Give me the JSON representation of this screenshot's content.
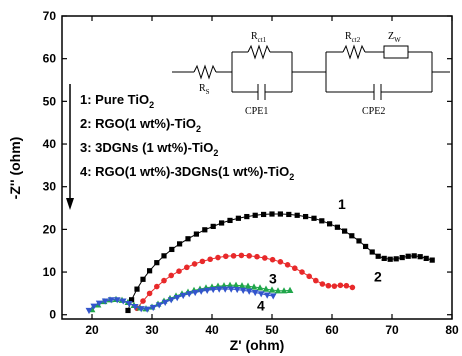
{
  "chart_data": {
    "type": "scatter",
    "xlabel": "Z' (ohm)",
    "ylabel": "-Z'' (ohm)",
    "xlim": [
      15,
      80
    ],
    "ylim": [
      -1,
      70
    ],
    "x_ticks": [
      20,
      30,
      40,
      50,
      60,
      70,
      80
    ],
    "y_ticks": [
      0,
      10,
      20,
      30,
      40,
      50,
      60,
      70
    ],
    "legend": {
      "placement": "left",
      "entries": [
        {
          "num": "1: ",
          "text": "Pure TiO",
          "sub": "2",
          "tail": ""
        },
        {
          "num": "2: ",
          "text": "RGO(1 wt%)-TiO",
          "sub": "2",
          "tail": ""
        },
        {
          "num": "3: ",
          "text": "3DGNs (1 wt%)-TiO",
          "sub": "2",
          "tail": ""
        },
        {
          "num": "4: ",
          "text": "RGO(1 wt%)-3DGNs(1 wt%)-TiO",
          "sub": "2",
          "tail": ""
        }
      ]
    },
    "circuit": {
      "rs": "R",
      "rs_sub": "S",
      "rct1": "R",
      "rct1_sub": "ct1",
      "cpe1": "CPE1",
      "rct2": "R",
      "rct2_sub": "ct2",
      "zw": "Z",
      "zw_sub": "W",
      "cpe2": "CPE2"
    },
    "series": [
      {
        "id": "1",
        "label": "1",
        "color": "#000000",
        "marker": "square",
        "points": [
          [
            26,
            1
          ],
          [
            26.6,
            3.5
          ],
          [
            27.5,
            6
          ],
          [
            28.5,
            8.3
          ],
          [
            29.6,
            10.3
          ],
          [
            30.8,
            12.2
          ],
          [
            32,
            13.8
          ],
          [
            33.3,
            15.3
          ],
          [
            34.6,
            16.6
          ],
          [
            36,
            17.8
          ],
          [
            37.4,
            18.9
          ],
          [
            38.8,
            19.9
          ],
          [
            40.2,
            20.7
          ],
          [
            41.6,
            21.5
          ],
          [
            43,
            22.1
          ],
          [
            44.4,
            22.6
          ],
          [
            45.8,
            23
          ],
          [
            47.2,
            23.3
          ],
          [
            48.6,
            23.5
          ],
          [
            50,
            23.6
          ],
          [
            51.4,
            23.6
          ],
          [
            52.8,
            23.5
          ],
          [
            54.2,
            23.3
          ],
          [
            55.6,
            23
          ],
          [
            57,
            22.6
          ],
          [
            58.3,
            22
          ],
          [
            59.6,
            21.3
          ],
          [
            60.9,
            20.5
          ],
          [
            62.1,
            19.6
          ],
          [
            63.3,
            18.5
          ],
          [
            64.5,
            17.3
          ],
          [
            65.6,
            16
          ],
          [
            66.7,
            14.7
          ],
          [
            67.7,
            13.7
          ],
          [
            68.7,
            13.2
          ],
          [
            69.7,
            13
          ],
          [
            70.7,
            13.1
          ],
          [
            71.7,
            13.4
          ],
          [
            72.7,
            13.7
          ],
          [
            73.7,
            13.8
          ],
          [
            74.7,
            13.6
          ],
          [
            75.7,
            13.2
          ],
          [
            76.7,
            12.8
          ]
        ]
      },
      {
        "id": "2",
        "label": "2",
        "color": "#e8292a",
        "marker": "circle",
        "points": [
          [
            27.5,
            1.5
          ],
          [
            28.5,
            3.2
          ],
          [
            29.6,
            5
          ],
          [
            30.8,
            6.6
          ],
          [
            32,
            8
          ],
          [
            33.2,
            9.2
          ],
          [
            34.5,
            10.2
          ],
          [
            35.8,
            11.1
          ],
          [
            37.1,
            11.9
          ],
          [
            38.4,
            12.5
          ],
          [
            39.7,
            13
          ],
          [
            41,
            13.4
          ],
          [
            42.3,
            13.7
          ],
          [
            43.6,
            13.8
          ],
          [
            44.9,
            13.9
          ],
          [
            46.2,
            13.8
          ],
          [
            47.5,
            13.6
          ],
          [
            48.8,
            13.3
          ],
          [
            50.1,
            12.9
          ],
          [
            51.4,
            12.4
          ],
          [
            52.6,
            11.7
          ],
          [
            53.8,
            10.9
          ],
          [
            55,
            10
          ],
          [
            56.2,
            9
          ],
          [
            57.3,
            8
          ],
          [
            58.4,
            7.2
          ],
          [
            59.4,
            6.8
          ],
          [
            60.4,
            6.7
          ],
          [
            61.4,
            6.9
          ],
          [
            62.4,
            6.8
          ],
          [
            63.4,
            6.4
          ]
        ]
      },
      {
        "id": "3",
        "label": "3",
        "color": "#20a64a",
        "marker": "triangle",
        "points": [
          [
            20,
            1.2
          ],
          [
            21,
            2.3
          ],
          [
            22,
            3.1
          ],
          [
            23,
            3.5
          ],
          [
            24,
            3.6
          ],
          [
            25,
            3.4
          ],
          [
            26,
            2.9
          ],
          [
            27,
            2.2
          ],
          [
            28,
            1.6
          ],
          [
            29,
            1.4
          ],
          [
            30,
            1.8
          ],
          [
            31,
            2.5
          ],
          [
            32,
            3.2
          ],
          [
            33,
            3.8
          ],
          [
            34,
            4.4
          ],
          [
            35,
            4.9
          ],
          [
            36,
            5.3
          ],
          [
            37,
            5.7
          ],
          [
            38,
            6
          ],
          [
            39,
            6.3
          ],
          [
            40,
            6.5
          ],
          [
            41,
            6.7
          ],
          [
            42,
            6.8
          ],
          [
            43,
            6.9
          ],
          [
            44,
            6.9
          ],
          [
            45,
            6.8
          ],
          [
            46,
            6.7
          ],
          [
            47,
            6.5
          ],
          [
            48,
            6.3
          ],
          [
            49,
            6
          ],
          [
            50,
            5.8
          ],
          [
            51,
            5.6
          ],
          [
            52,
            5.6
          ],
          [
            53,
            5.7
          ]
        ]
      },
      {
        "id": "4",
        "label": "4",
        "color": "#3355cc",
        "marker": "triangle-down",
        "points": [
          [
            19.5,
            1
          ],
          [
            20.3,
            2
          ],
          [
            21.2,
            2.7
          ],
          [
            22.2,
            3.2
          ],
          [
            23.2,
            3.5
          ],
          [
            24.2,
            3.5
          ],
          [
            25.2,
            3.2
          ],
          [
            26.2,
            2.6
          ],
          [
            27.2,
            1.9
          ],
          [
            28.2,
            1.4
          ],
          [
            29.2,
            1.3
          ],
          [
            30.2,
            1.7
          ],
          [
            31.2,
            2.3
          ],
          [
            32.2,
            2.9
          ],
          [
            33.2,
            3.5
          ],
          [
            34.2,
            4
          ],
          [
            35.2,
            4.5
          ],
          [
            36.2,
            4.9
          ],
          [
            37.2,
            5.2
          ],
          [
            38.2,
            5.5
          ],
          [
            39.2,
            5.7
          ],
          [
            40.2,
            5.9
          ],
          [
            41.2,
            6
          ],
          [
            42.2,
            6
          ],
          [
            43.2,
            6
          ],
          [
            44.2,
            5.9
          ],
          [
            45.2,
            5.7
          ],
          [
            46.2,
            5.5
          ],
          [
            47.2,
            5.2
          ],
          [
            48.2,
            4.9
          ],
          [
            49.2,
            4.6
          ],
          [
            50.2,
            4.4
          ]
        ]
      }
    ]
  }
}
